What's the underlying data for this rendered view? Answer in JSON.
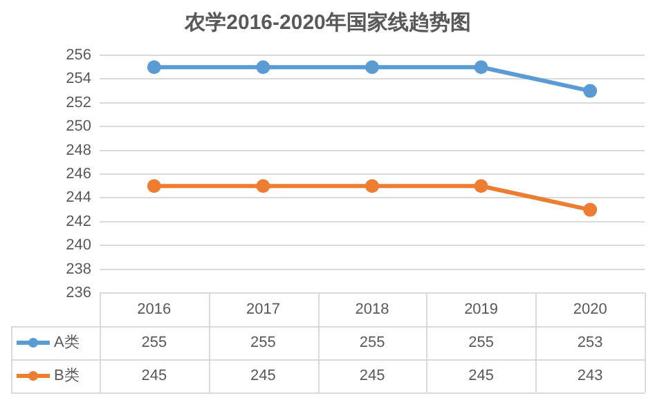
{
  "chart_data": {
    "type": "line",
    "title": "农学2016-2020年国家线趋势图",
    "categories": [
      "2016",
      "2017",
      "2018",
      "2019",
      "2020"
    ],
    "series": [
      {
        "name": "A类",
        "color": "#5b9bd5",
        "values": [
          255,
          255,
          255,
          255,
          253
        ]
      },
      {
        "name": "B类",
        "color": "#ed7d31",
        "values": [
          245,
          245,
          245,
          245,
          243
        ]
      }
    ],
    "ylim": [
      236,
      256
    ],
    "yticks": [
      236,
      238,
      240,
      242,
      244,
      246,
      248,
      250,
      252,
      254,
      256
    ],
    "grid": "y",
    "legend": "bottom",
    "data_labels": true,
    "marker": "circle",
    "line_style": "solid"
  }
}
